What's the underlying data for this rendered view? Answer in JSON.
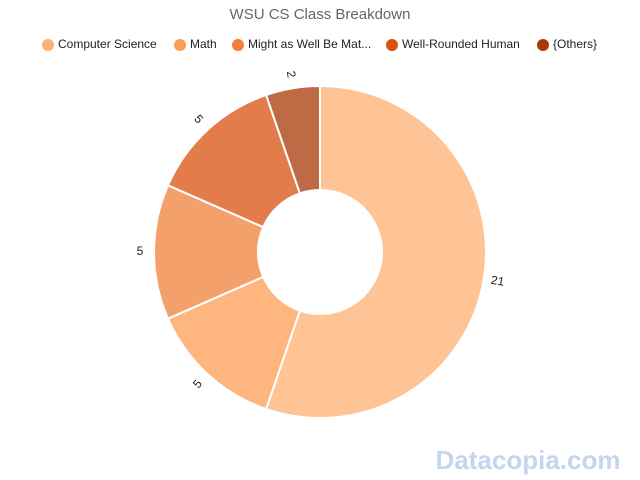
{
  "chart_data": {
    "type": "donut",
    "title": "WSU CS Class Breakdown",
    "categories": [
      "Computer Science",
      "Math",
      "Might as Well Be Mat...",
      "Well-Rounded Human",
      "{Others}"
    ],
    "values": [
      21,
      5,
      5,
      5,
      2
    ],
    "colors": [
      "#fdb073",
      "#fd9c53",
      "#f0803a",
      "#d9500f",
      "#a63a07"
    ]
  },
  "watermark": "Datacopia.com"
}
